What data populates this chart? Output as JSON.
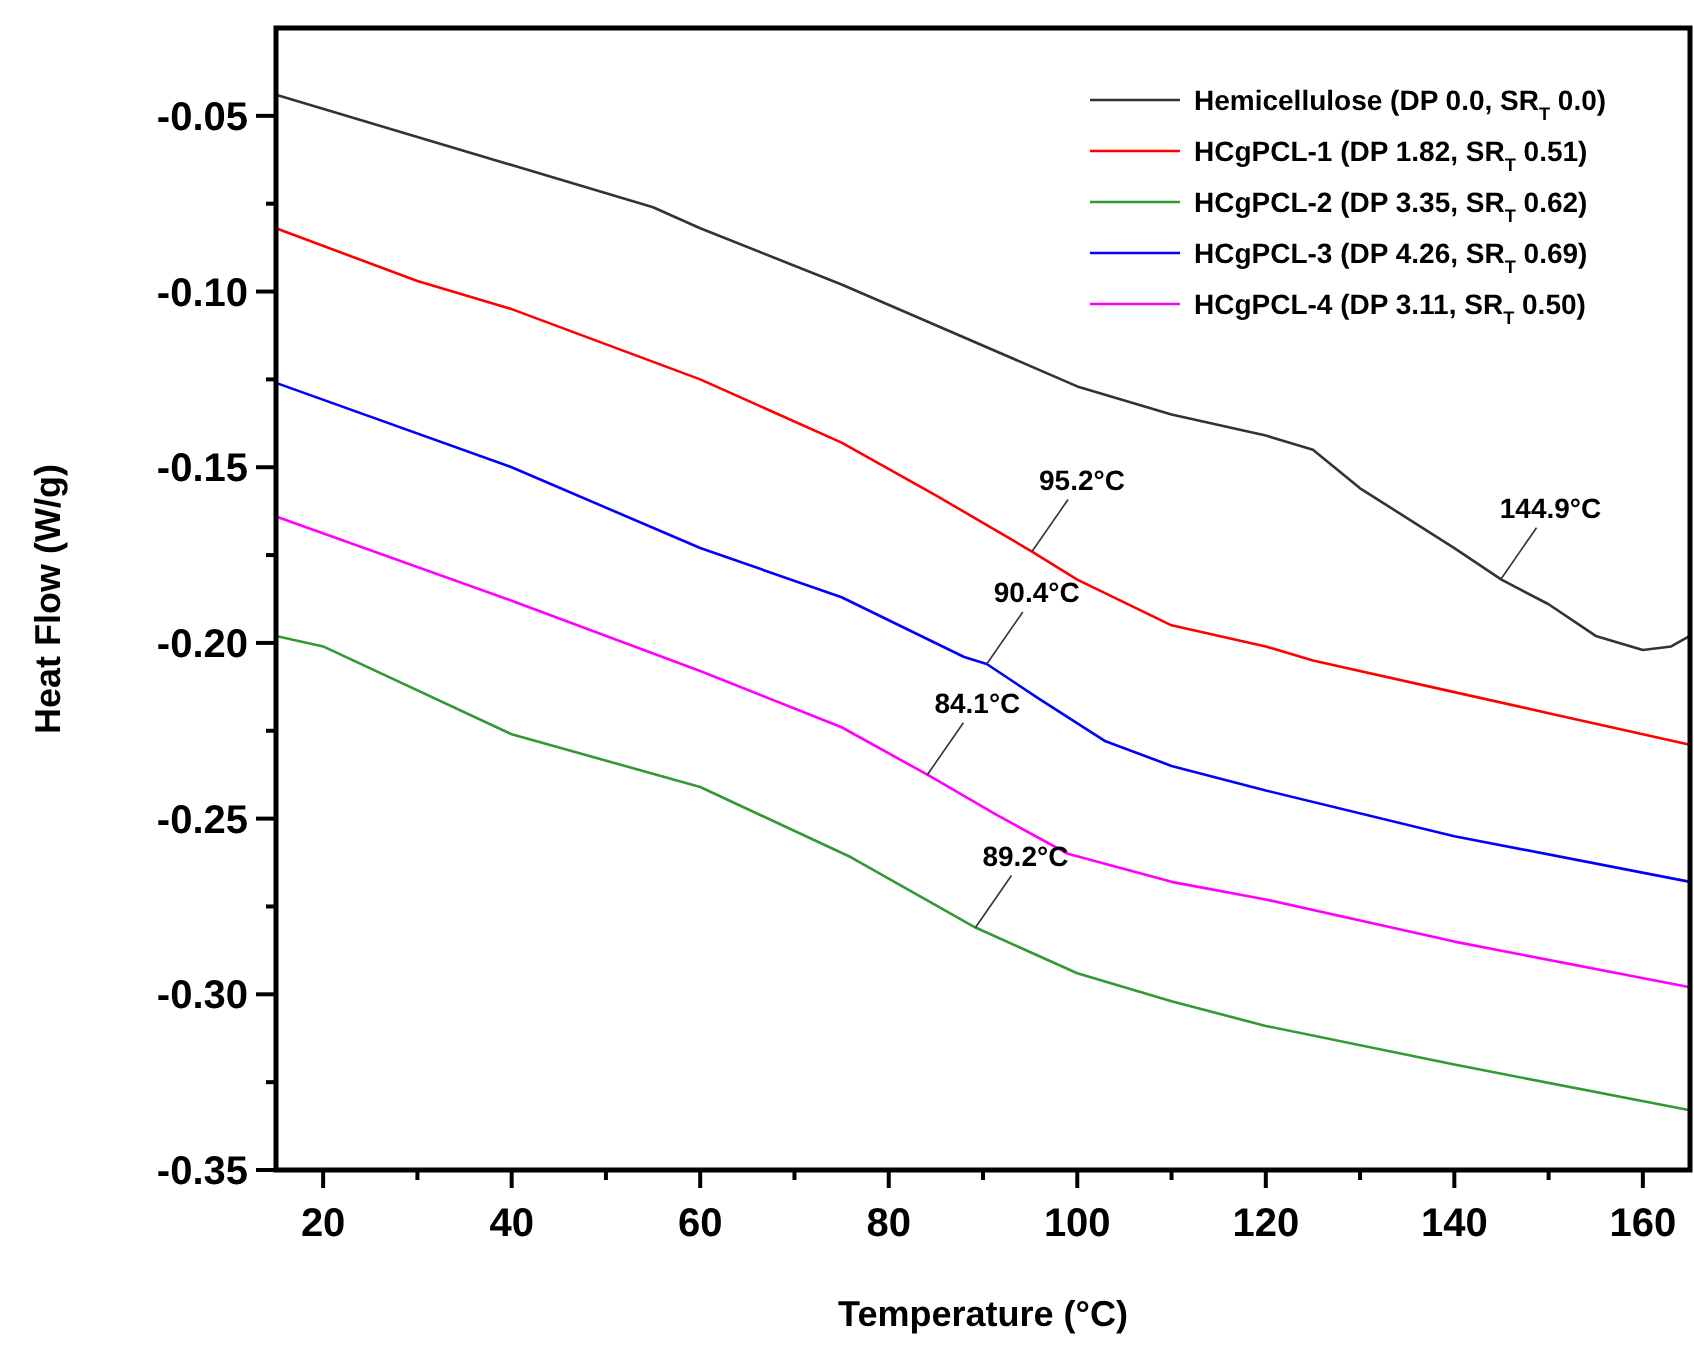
{
  "chart_data": {
    "type": "line",
    "xlabel": "Temperature (°C)",
    "ylabel": "Heat Flow (W/g)",
    "xlim": [
      15,
      165
    ],
    "ylim": [
      -0.35,
      -0.025
    ],
    "xticks": [
      20,
      {
        "value": 30,
        "label": null
      },
      40,
      {
        "value": 50,
        "label": null
      },
      60,
      {
        "value": 70,
        "label": null
      },
      80,
      {
        "value": 90,
        "label": null
      },
      100,
      {
        "value": 110,
        "label": null
      },
      120,
      {
        "value": 130,
        "label": null
      },
      140,
      {
        "value": 150,
        "label": null
      },
      160
    ],
    "yticks": [
      {
        "value": -0.35,
        "label": "-0.35"
      },
      {
        "value": -0.325,
        "label": null
      },
      {
        "value": -0.3,
        "label": "-0.30"
      },
      {
        "value": -0.275,
        "label": null
      },
      {
        "value": -0.25,
        "label": "-0.25"
      },
      {
        "value": -0.225,
        "label": null
      },
      {
        "value": -0.2,
        "label": "-0.20"
      },
      {
        "value": -0.175,
        "label": null
      },
      {
        "value": -0.15,
        "label": "-0.15"
      },
      {
        "value": -0.125,
        "label": null
      },
      {
        "value": -0.1,
        "label": "-0.10"
      },
      {
        "value": -0.075,
        "label": null
      },
      {
        "value": -0.05,
        "label": "-0.05"
      }
    ],
    "legend": "top right",
    "grid": false,
    "marker": "none",
    "line_style": "solid",
    "series": [
      {
        "name": "Hemicellulose (DP 0.0, SR$_{T}$ 0.0)",
        "color": "#333333",
        "x": [
          15,
          30,
          40,
          55,
          60,
          75,
          100,
          110,
          120,
          125,
          130,
          140,
          145,
          150,
          155,
          160,
          163,
          165
        ],
        "values": [
          -0.044,
          -0.056,
          -0.064,
          -0.076,
          -0.082,
          -0.098,
          -0.127,
          -0.135,
          -0.141,
          -0.145,
          -0.156,
          -0.173,
          -0.182,
          -0.189,
          -0.198,
          -0.202,
          -0.201,
          -0.198
        ]
      },
      {
        "name": "HCgPCL-1 (DP 1.82, SR$_{T}$ 0.51)",
        "color": "#ff0000",
        "x": [
          15,
          30,
          40,
          60,
          75,
          85,
          95.2,
          100,
          110,
          120,
          125,
          140,
          150,
          165
        ],
        "values": [
          -0.082,
          -0.097,
          -0.105,
          -0.125,
          -0.143,
          -0.158,
          -0.174,
          -0.182,
          -0.195,
          -0.201,
          -0.205,
          -0.214,
          -0.22,
          -0.229
        ]
      },
      {
        "name": "HCgPCL-2 (DP 3.35, SR$_{T}$ 0.62)",
        "color": "#339933",
        "x": [
          15,
          20,
          40,
          60,
          76,
          89.2,
          100,
          110,
          120,
          140,
          165
        ],
        "values": [
          -0.198,
          -0.201,
          -0.226,
          -0.241,
          -0.261,
          -0.281,
          -0.294,
          -0.302,
          -0.309,
          -0.32,
          -0.333
        ]
      },
      {
        "name": "HCgPCL-3 (DP 4.26, SR$_{T}$ 0.69)",
        "color": "#0000ff",
        "x": [
          15,
          40,
          60,
          75,
          88,
          90.4,
          96,
          103,
          110,
          120,
          140,
          165
        ],
        "values": [
          -0.126,
          -0.15,
          -0.173,
          -0.187,
          -0.204,
          -0.206,
          -0.216,
          -0.228,
          -0.235,
          -0.242,
          -0.255,
          -0.268
        ]
      },
      {
        "name": "HCgPCL-4 (DP 3.11, SR$_{T}$ 0.50)",
        "color": "#ff00ff",
        "x": [
          15,
          40,
          60,
          75,
          84.1,
          91.5,
          99,
          110,
          120,
          140,
          165
        ],
        "values": [
          -0.164,
          -0.188,
          -0.208,
          -0.224,
          -0.2375,
          -0.249,
          -0.26,
          -0.268,
          -0.273,
          -0.285,
          -0.298
        ]
      }
    ],
    "annotations": [
      {
        "text": "95.2°C",
        "x": 95.2,
        "y": -0.174
      },
      {
        "text": "144.9°C",
        "x": 144.9,
        "y": -0.182
      },
      {
        "text": "90.4°C",
        "x": 90.4,
        "y": -0.206
      },
      {
        "text": "84.1°C",
        "x": 84.1,
        "y": -0.2375
      },
      {
        "text": "89.2°C",
        "x": 89.2,
        "y": -0.281
      }
    ]
  }
}
